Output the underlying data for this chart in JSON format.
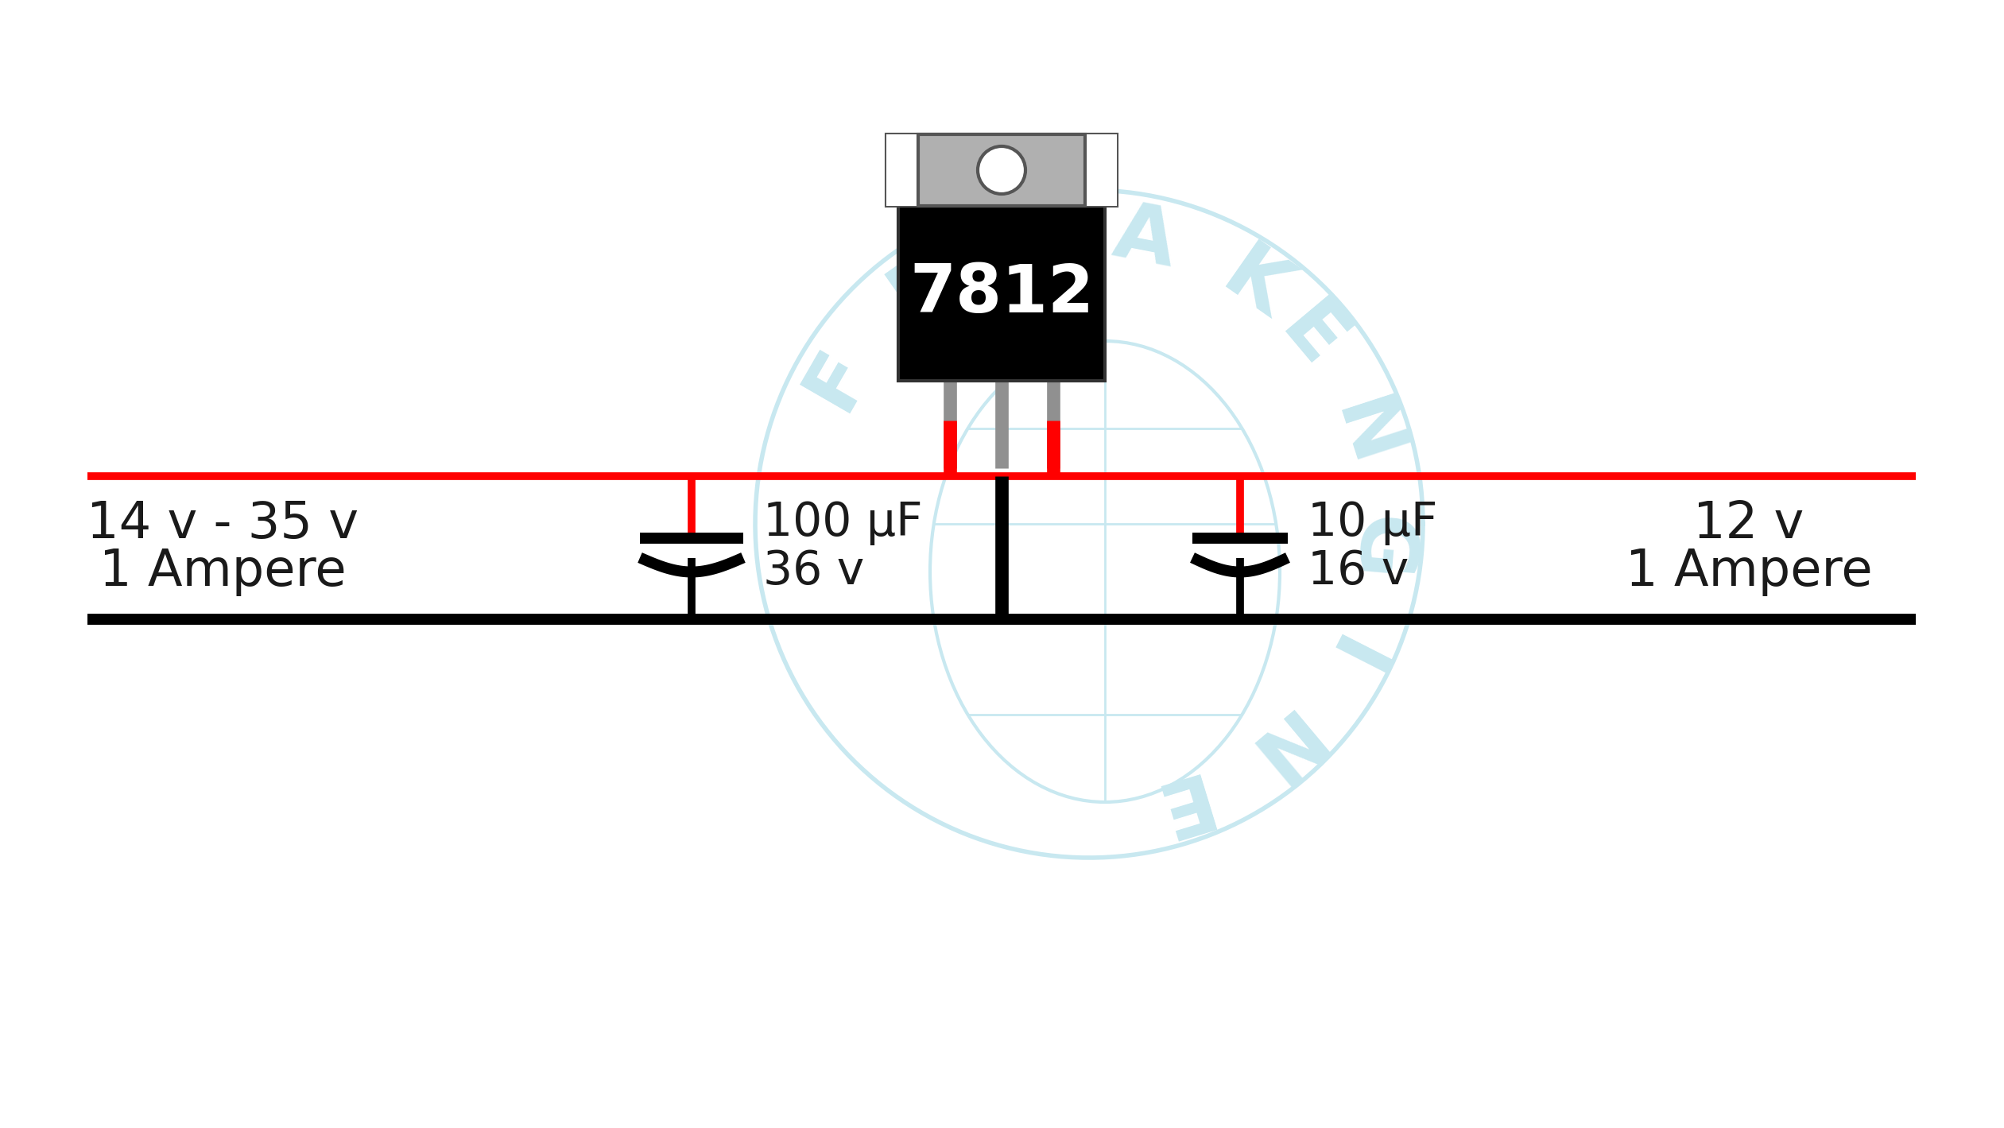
{
  "bg_color": "#ffffff",
  "wire_red": "#ff0000",
  "wire_black": "#000000",
  "ic_body_color": "#000000",
  "ic_tab_color": "#b0b0b0",
  "ic_tab_edge_color": "#555555",
  "ic_pin_color": "#909090",
  "text_color": "#1a1a1a",
  "watermark_color": "#c8e8f0",
  "left_label_line1": "14 v - 35 v",
  "left_label_line2": "1 Ampere",
  "right_label_line1": "12 v",
  "right_label_line2": "1 Ampere",
  "cap1_label_line1": "100 μF",
  "cap1_label_line2": "36 v",
  "cap2_label_line1": "10 μF",
  "cap2_label_line2": "16 v",
  "figsize": [
    25.21,
    14.19
  ],
  "dpi": 100,
  "xlim": [
    0,
    2521
  ],
  "ylim": [
    0,
    1419
  ]
}
